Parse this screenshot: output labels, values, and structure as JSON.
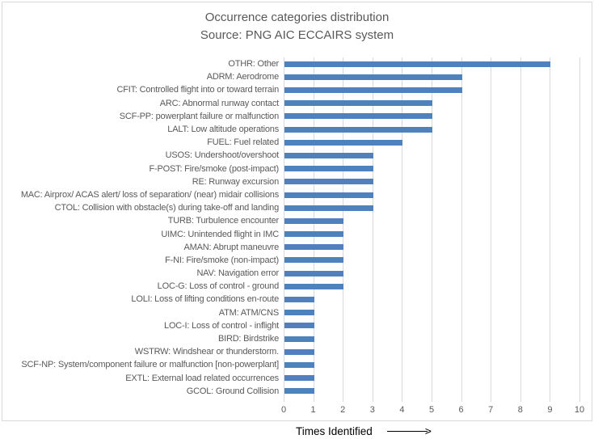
{
  "chart_data": {
    "type": "bar",
    "orientation": "horizontal",
    "title": "Occurrence categories distribution",
    "subtitle": "Source: PNG AIC ECCAIRS system",
    "xlabel": "Times Identified",
    "xlim": [
      0,
      10
    ],
    "xticks": [
      0,
      1,
      2,
      3,
      4,
      5,
      6,
      7,
      8,
      9,
      10
    ],
    "grid": true,
    "legend": false,
    "categories": [
      "OTHR: Other",
      "ADRM: Aerodrome",
      "CFIT: Controlled flight into or toward terrain",
      "ARC: Abnormal runway contact",
      "SCF-PP: powerplant failure or malfunction",
      "LALT: Low altitude operations",
      "FUEL: Fuel related",
      "USOS: Undershoot/overshoot",
      "F-POST: Fire/smoke (post-impact)",
      "RE: Runway excursion",
      "MAC: Airprox/ ACAS alert/ loss of separation/ (near) midair collisions",
      "CTOL: Collision with obstacle(s) during take-off and landing",
      "TURB: Turbulence encounter",
      "UIMC: Unintended flight in IMC",
      "AMAN: Abrupt maneuvre",
      "F-NI: Fire/smoke (non-impact)",
      "NAV: Navigation error",
      "LOC-G: Loss of control - ground",
      "LOLI: Loss of lifting conditions en-route",
      "ATM: ATM/CNS",
      "LOC-I: Loss of control - inflight",
      "BIRD: Birdstrike",
      "WSTRW: Windshear or thunderstorm.",
      "SCF-NP: System/component failure or malfunction [non-powerplant]",
      "EXTL: External load related occurrences",
      "GCOL: Ground Collision"
    ],
    "values": [
      9,
      6,
      6,
      5,
      5,
      5,
      4,
      3,
      3,
      3,
      3,
      3,
      2,
      2,
      2,
      2,
      2,
      2,
      1,
      1,
      1,
      1,
      1,
      1,
      1,
      1
    ]
  },
  "footer": {
    "axis_label": "Times Identified",
    "arrow_glyph": ">"
  },
  "colors": {
    "bar": "#4F81BD",
    "gridline": "#D9D9D9",
    "text": "#595959",
    "frame_border": "#D9D9D9",
    "footer_text": "#000000"
  }
}
